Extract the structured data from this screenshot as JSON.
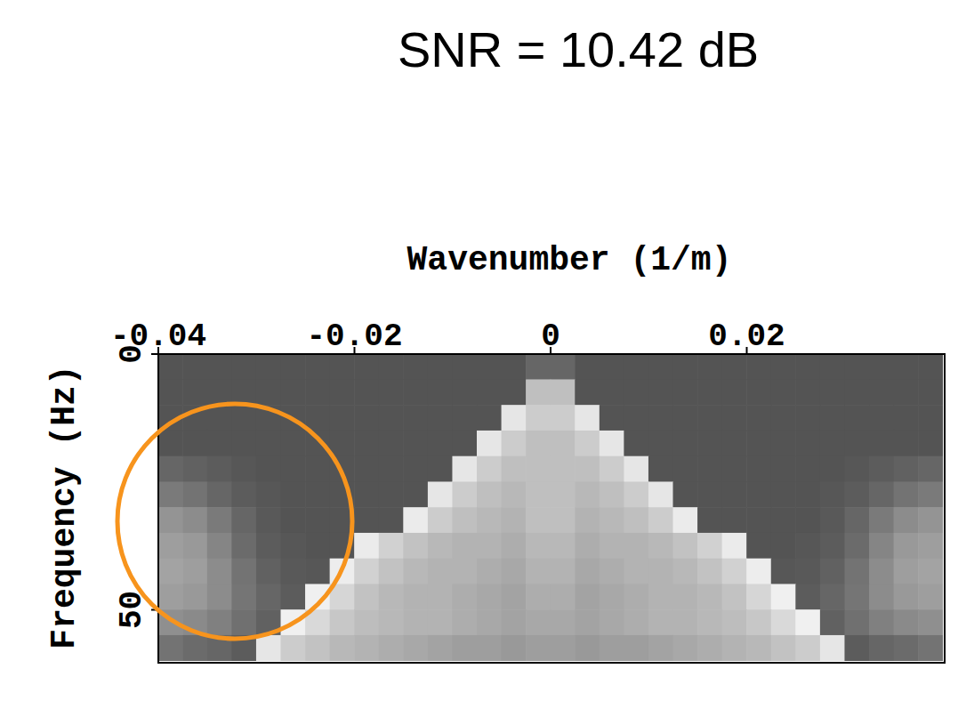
{
  "chart_data": {
    "type": "heatmap",
    "title": "SNR = 10.42 dB",
    "x_label": "Wavenumber (1/m)",
    "y_label": "Frequency (Hz)",
    "xlim": [
      -0.04,
      0.04
    ],
    "ylim": [
      0,
      60
    ],
    "xticks": [
      -0.04,
      -0.02,
      0,
      0.02
    ],
    "yticks": [
      0,
      50
    ],
    "x": [
      -0.03875,
      -0.03625,
      -0.03375,
      -0.03125,
      -0.02875,
      -0.02625,
      -0.02375,
      -0.02125,
      -0.01875,
      -0.01625,
      -0.01375,
      -0.01125,
      -0.00875,
      -0.00625,
      -0.00375,
      -0.00125,
      0.00125,
      0.00375,
      0.00625,
      0.00875,
      0.01125,
      0.01375,
      0.01625,
      0.01875,
      0.02125,
      0.02375,
      0.02625,
      0.02875,
      0.03125,
      0.03375,
      0.03625,
      0.03875
    ],
    "y": [
      2.5,
      7.5,
      12.5,
      17.5,
      22.5,
      27.5,
      32.5,
      37.5,
      42.5,
      47.5,
      52.5,
      57.5
    ],
    "cells": [
      [
        0.33,
        0.33,
        0.33,
        0.33,
        0.33,
        0.33,
        0.33,
        0.33,
        0.33,
        0.33,
        0.33,
        0.33,
        0.33,
        0.33,
        0.33,
        0.4,
        0.4,
        0.33,
        0.33,
        0.33,
        0.33,
        0.33,
        0.33,
        0.33,
        0.33,
        0.33,
        0.33,
        0.33,
        0.33,
        0.33,
        0.33,
        0.33
      ],
      [
        0.33,
        0.33,
        0.33,
        0.33,
        0.33,
        0.33,
        0.33,
        0.33,
        0.33,
        0.33,
        0.33,
        0.33,
        0.33,
        0.33,
        0.33,
        0.75,
        0.75,
        0.33,
        0.33,
        0.33,
        0.33,
        0.33,
        0.33,
        0.33,
        0.33,
        0.33,
        0.33,
        0.33,
        0.33,
        0.33,
        0.33,
        0.33
      ],
      [
        0.33,
        0.33,
        0.33,
        0.33,
        0.33,
        0.33,
        0.33,
        0.33,
        0.33,
        0.33,
        0.33,
        0.33,
        0.33,
        0.33,
        0.9,
        0.8,
        0.8,
        0.9,
        0.33,
        0.33,
        0.33,
        0.33,
        0.33,
        0.33,
        0.33,
        0.33,
        0.33,
        0.33,
        0.33,
        0.33,
        0.33,
        0.33
      ],
      [
        0.33,
        0.33,
        0.33,
        0.33,
        0.33,
        0.33,
        0.33,
        0.33,
        0.33,
        0.33,
        0.33,
        0.33,
        0.33,
        0.9,
        0.8,
        0.75,
        0.75,
        0.8,
        0.9,
        0.33,
        0.33,
        0.33,
        0.33,
        0.33,
        0.33,
        0.33,
        0.33,
        0.33,
        0.33,
        0.33,
        0.33,
        0.33
      ],
      [
        0.4,
        0.38,
        0.36,
        0.34,
        0.33,
        0.33,
        0.33,
        0.33,
        0.33,
        0.33,
        0.33,
        0.33,
        0.9,
        0.8,
        0.75,
        0.75,
        0.75,
        0.75,
        0.8,
        0.9,
        0.33,
        0.33,
        0.33,
        0.33,
        0.33,
        0.33,
        0.33,
        0.33,
        0.34,
        0.36,
        0.38,
        0.4
      ],
      [
        0.48,
        0.45,
        0.4,
        0.36,
        0.34,
        0.33,
        0.33,
        0.33,
        0.33,
        0.33,
        0.33,
        0.9,
        0.8,
        0.75,
        0.72,
        0.75,
        0.75,
        0.72,
        0.75,
        0.8,
        0.9,
        0.33,
        0.33,
        0.33,
        0.33,
        0.33,
        0.33,
        0.34,
        0.36,
        0.4,
        0.45,
        0.48
      ],
      [
        0.58,
        0.55,
        0.48,
        0.4,
        0.35,
        0.33,
        0.33,
        0.33,
        0.33,
        0.33,
        0.92,
        0.8,
        0.75,
        0.72,
        0.7,
        0.75,
        0.75,
        0.7,
        0.72,
        0.75,
        0.8,
        0.92,
        0.33,
        0.33,
        0.33,
        0.33,
        0.33,
        0.35,
        0.4,
        0.48,
        0.55,
        0.58
      ],
      [
        0.62,
        0.6,
        0.52,
        0.42,
        0.36,
        0.34,
        0.33,
        0.33,
        0.92,
        0.82,
        0.76,
        0.72,
        0.7,
        0.7,
        0.68,
        0.72,
        0.72,
        0.68,
        0.7,
        0.7,
        0.72,
        0.76,
        0.82,
        0.92,
        0.33,
        0.33,
        0.34,
        0.36,
        0.42,
        0.52,
        0.6,
        0.62
      ],
      [
        0.64,
        0.62,
        0.55,
        0.45,
        0.38,
        0.35,
        0.34,
        0.93,
        0.82,
        0.76,
        0.72,
        0.7,
        0.7,
        0.68,
        0.66,
        0.7,
        0.7,
        0.66,
        0.68,
        0.7,
        0.7,
        0.72,
        0.76,
        0.82,
        0.93,
        0.34,
        0.35,
        0.38,
        0.45,
        0.55,
        0.62,
        0.64
      ],
      [
        0.62,
        0.6,
        0.55,
        0.46,
        0.4,
        0.36,
        0.94,
        0.84,
        0.76,
        0.72,
        0.7,
        0.7,
        0.68,
        0.66,
        0.64,
        0.68,
        0.68,
        0.64,
        0.66,
        0.68,
        0.7,
        0.7,
        0.72,
        0.76,
        0.84,
        0.94,
        0.36,
        0.4,
        0.46,
        0.55,
        0.6,
        0.62
      ],
      [
        0.56,
        0.54,
        0.5,
        0.44,
        0.38,
        0.94,
        0.85,
        0.78,
        0.74,
        0.72,
        0.7,
        0.7,
        0.68,
        0.66,
        0.64,
        0.66,
        0.66,
        0.64,
        0.66,
        0.68,
        0.7,
        0.7,
        0.72,
        0.74,
        0.78,
        0.85,
        0.94,
        0.38,
        0.44,
        0.5,
        0.54,
        0.56
      ],
      [
        0.45,
        0.42,
        0.4,
        0.36,
        0.9,
        0.8,
        0.76,
        0.72,
        0.7,
        0.68,
        0.66,
        0.64,
        0.62,
        0.62,
        0.6,
        0.62,
        0.62,
        0.6,
        0.62,
        0.62,
        0.64,
        0.66,
        0.68,
        0.7,
        0.72,
        0.76,
        0.8,
        0.9,
        0.36,
        0.4,
        0.42,
        0.45
      ]
    ]
  }
}
